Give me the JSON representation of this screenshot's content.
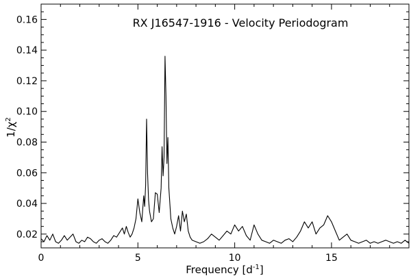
{
  "chart_data": {
    "type": "line",
    "title": "RX J16547-1916 - Velocity Periodogram",
    "xlabel_main": "Frequency [d",
    "xlabel_sup": "-1",
    "xlabel_close": "]",
    "ylabel_main": "1/χ",
    "ylabel_sup": "2",
    "xlim": [
      0,
      19
    ],
    "ylim": [
      0.011,
      0.17
    ],
    "xticks": [
      0,
      5,
      10,
      15
    ],
    "xtick_labels": [
      "0",
      "5",
      "10",
      "15"
    ],
    "yticks": [
      0.02,
      0.04,
      0.06,
      0.08,
      0.1,
      0.12,
      0.14,
      0.16
    ],
    "ytick_labels": [
      "0.02",
      "0.04",
      "0.06",
      "0.08",
      "0.10",
      "0.12",
      "0.14",
      "0.16"
    ],
    "grid": false,
    "series": [
      {
        "color": "#000000",
        "x": [
          0.0,
          0.15,
          0.3,
          0.45,
          0.6,
          0.75,
          0.9,
          1.05,
          1.2,
          1.35,
          1.5,
          1.65,
          1.8,
          1.95,
          2.1,
          2.25,
          2.4,
          2.55,
          2.7,
          2.85,
          3.0,
          3.15,
          3.3,
          3.45,
          3.6,
          3.75,
          3.9,
          4.05,
          4.2,
          4.3,
          4.4,
          4.5,
          4.6,
          4.7,
          4.8,
          4.9,
          5.0,
          5.1,
          5.2,
          5.3,
          5.35,
          5.4,
          5.45,
          5.5,
          5.55,
          5.6,
          5.7,
          5.8,
          5.9,
          6.0,
          6.1,
          6.2,
          6.25,
          6.3,
          6.35,
          6.4,
          6.45,
          6.5,
          6.55,
          6.6,
          6.7,
          6.8,
          6.9,
          7.0,
          7.1,
          7.2,
          7.3,
          7.4,
          7.5,
          7.6,
          7.7,
          7.8,
          8.0,
          8.2,
          8.4,
          8.6,
          8.8,
          9.0,
          9.2,
          9.4,
          9.6,
          9.8,
          10.0,
          10.2,
          10.4,
          10.6,
          10.8,
          11.0,
          11.2,
          11.4,
          11.6,
          11.8,
          12.0,
          12.2,
          12.4,
          12.6,
          12.8,
          13.0,
          13.2,
          13.4,
          13.6,
          13.8,
          14.0,
          14.2,
          14.4,
          14.6,
          14.8,
          15.0,
          15.2,
          15.4,
          15.6,
          15.8,
          16.0,
          16.2,
          16.4,
          16.6,
          16.8,
          17.0,
          17.2,
          17.4,
          17.6,
          17.8,
          18.0,
          18.2,
          18.4,
          18.6,
          18.8,
          19.0
        ],
        "y": [
          0.017,
          0.015,
          0.019,
          0.016,
          0.02,
          0.015,
          0.014,
          0.016,
          0.019,
          0.016,
          0.018,
          0.02,
          0.015,
          0.014,
          0.016,
          0.015,
          0.018,
          0.017,
          0.015,
          0.014,
          0.016,
          0.017,
          0.015,
          0.014,
          0.016,
          0.019,
          0.018,
          0.021,
          0.024,
          0.02,
          0.025,
          0.021,
          0.018,
          0.02,
          0.024,
          0.03,
          0.043,
          0.034,
          0.028,
          0.045,
          0.038,
          0.052,
          0.095,
          0.06,
          0.042,
          0.035,
          0.028,
          0.03,
          0.047,
          0.046,
          0.034,
          0.05,
          0.077,
          0.058,
          0.07,
          0.136,
          0.11,
          0.066,
          0.083,
          0.05,
          0.03,
          0.024,
          0.02,
          0.025,
          0.032,
          0.022,
          0.035,
          0.028,
          0.033,
          0.022,
          0.018,
          0.016,
          0.015,
          0.014,
          0.015,
          0.017,
          0.02,
          0.018,
          0.016,
          0.019,
          0.022,
          0.02,
          0.026,
          0.022,
          0.025,
          0.019,
          0.016,
          0.026,
          0.02,
          0.016,
          0.015,
          0.014,
          0.016,
          0.015,
          0.014,
          0.016,
          0.017,
          0.015,
          0.018,
          0.022,
          0.028,
          0.024,
          0.028,
          0.02,
          0.024,
          0.026,
          0.032,
          0.028,
          0.022,
          0.016,
          0.018,
          0.02,
          0.016,
          0.015,
          0.014,
          0.015,
          0.016,
          0.014,
          0.015,
          0.014,
          0.015,
          0.016,
          0.015,
          0.014,
          0.015,
          0.014,
          0.016,
          0.014
        ]
      }
    ]
  }
}
